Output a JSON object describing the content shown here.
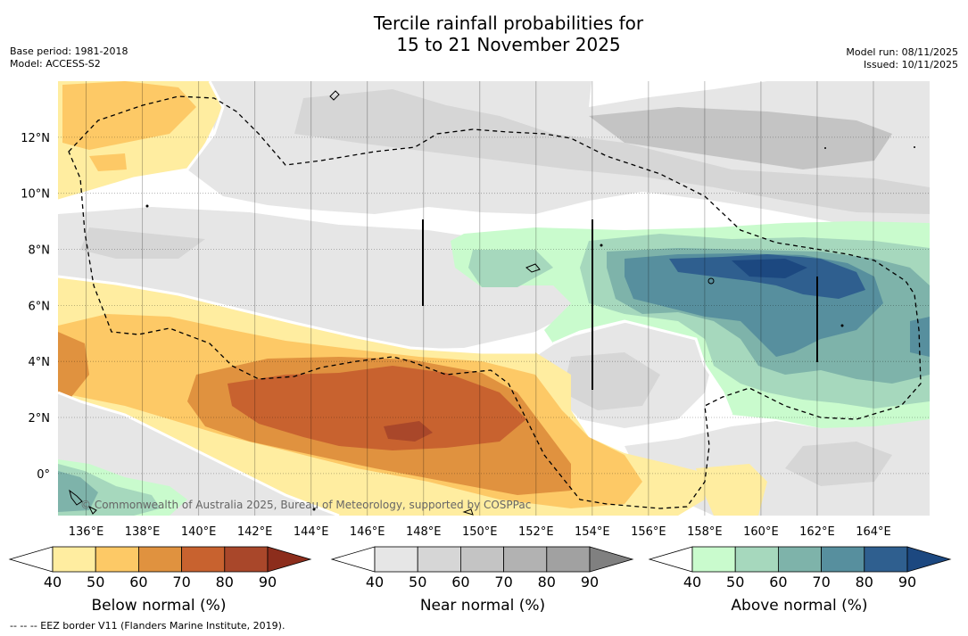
{
  "title": {
    "line1": "Tercile rainfall probabilities for",
    "line2": "15 to 21 November 2025"
  },
  "meta_left": {
    "base_period": "Base period: 1981-2018",
    "model": "Model: ACCESS-S2"
  },
  "meta_right": {
    "model_run": "Model run: 08/11/2025",
    "issued": "Issued: 10/11/2025"
  },
  "map": {
    "lon_labels": [
      "136°E",
      "138°E",
      "140°E",
      "142°E",
      "144°E",
      "146°E",
      "148°E",
      "150°E",
      "152°E",
      "154°E",
      "156°E",
      "158°E",
      "160°E",
      "162°E",
      "164°E"
    ],
    "lon_values": [
      136,
      138,
      140,
      142,
      144,
      146,
      148,
      150,
      152,
      154,
      156,
      158,
      160,
      162,
      164
    ],
    "lat_labels": [
      "12°N",
      "10°N",
      "8°N",
      "6°N",
      "4°N",
      "2°N",
      "0°"
    ],
    "lat_values": [
      12,
      10,
      8,
      6,
      4,
      2,
      0
    ],
    "extent": {
      "lon_min": 135,
      "lon_max": 166,
      "lat_min": -1.5,
      "lat_max": 14
    },
    "copyright": "© Commonwealth of Australia 2025, Bureau of Meteorology, supported by COSPPac"
  },
  "colorbars": [
    {
      "name": "below-normal",
      "title": "Below normal (%)",
      "ticks": [
        "40",
        "50",
        "60",
        "70",
        "80",
        "90"
      ],
      "colors": [
        "#ffffff",
        "#ffeda0",
        "#fdc966",
        "#e0923f",
        "#c8622f",
        "#a9472a",
        "#8c2d1c"
      ]
    },
    {
      "name": "near-normal",
      "title": "Near normal (%)",
      "ticks": [
        "40",
        "50",
        "60",
        "70",
        "80",
        "90"
      ],
      "colors": [
        "#ffffff",
        "#e6e6e6",
        "#d6d6d6",
        "#c4c4c4",
        "#b2b2b2",
        "#a1a1a1",
        "#808080"
      ]
    },
    {
      "name": "above-normal",
      "title": "Above normal (%)",
      "ticks": [
        "40",
        "50",
        "60",
        "70",
        "80",
        "90"
      ],
      "colors": [
        "#ffffff",
        "#c9fbcd",
        "#a6d8bd",
        "#7eb3aa",
        "#578f9e",
        "#2f5f8f",
        "#1c4880"
      ]
    }
  ],
  "footer": "--  --  -- EEZ border V11 (Flanders Marine Institute, 2019)."
}
